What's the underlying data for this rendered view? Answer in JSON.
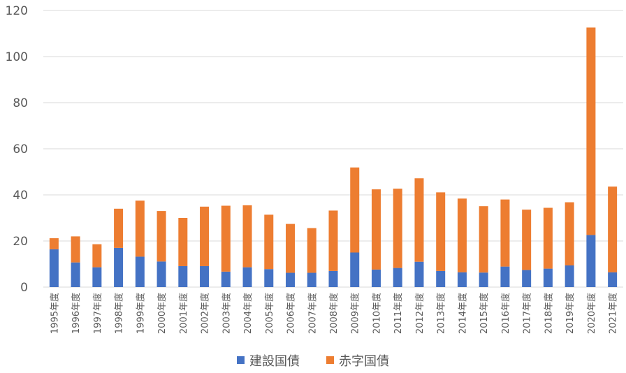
{
  "chart_data": {
    "type": "bar",
    "stacked": true,
    "grid": true,
    "legend_position": "bottom",
    "ylim": [
      0,
      120
    ],
    "yticks": [
      0,
      20,
      40,
      60,
      80,
      100,
      120
    ],
    "categories": [
      "1995年度",
      "1996年度",
      "1997年度",
      "1998年度",
      "1999年度",
      "2000年度",
      "2001年度",
      "2002年度",
      "2003年度",
      "2004年度",
      "2005年度",
      "2006年度",
      "2007年度",
      "2008年度",
      "2009年度",
      "2010年度",
      "2011年度",
      "2012年度",
      "2013年度",
      "2014年度",
      "2015年度",
      "2016年度",
      "2017年度",
      "2018年度",
      "2019年度",
      "2020年度",
      "2021年度"
    ],
    "series": [
      {
        "name": "建設国債",
        "color": "#4472C4",
        "values": [
          16.4,
          10.7,
          8.6,
          17.0,
          13.2,
          11.1,
          9.1,
          9.1,
          6.7,
          8.6,
          7.8,
          6.2,
          6.2,
          7.0,
          15.0,
          7.6,
          8.3,
          11.0,
          7.0,
          6.4,
          6.3,
          8.9,
          7.4,
          8.0,
          9.4,
          22.6,
          6.4
        ]
      },
      {
        "name": "赤字国債",
        "color": "#ED7D31",
        "values": [
          4.8,
          11.3,
          10.0,
          17.0,
          24.3,
          21.9,
          20.9,
          25.8,
          28.6,
          26.9,
          23.6,
          21.2,
          19.4,
          26.2,
          36.9,
          34.8,
          34.4,
          36.2,
          34.1,
          32.0,
          28.8,
          29.1,
          26.2,
          26.4,
          27.4,
          90.0,
          37.2
        ]
      }
    ]
  }
}
